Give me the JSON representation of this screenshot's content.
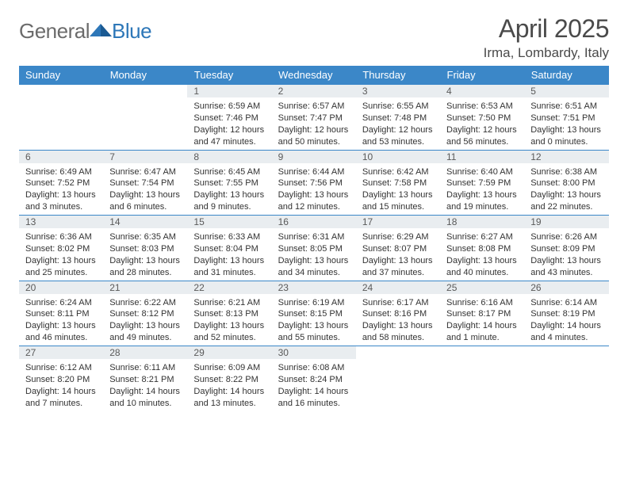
{
  "logo": {
    "general": "General",
    "blue": "Blue"
  },
  "title": "April 2025",
  "location": "Irma, Lombardy, Italy",
  "colors": {
    "header_bg": "#3b87c8",
    "header_text": "#ffffff",
    "daynum_bg": "#e9edf0",
    "border": "#3b87c8",
    "text": "#333333",
    "logo_general": "#6b6b6b",
    "logo_blue": "#2d77b8",
    "background": "#ffffff"
  },
  "typography": {
    "title_fontsize": 32,
    "location_fontsize": 17,
    "header_fontsize": 13,
    "daynum_fontsize": 12,
    "cell_fontsize": 11,
    "logo_fontsize": 26
  },
  "day_headers": [
    "Sunday",
    "Monday",
    "Tuesday",
    "Wednesday",
    "Thursday",
    "Friday",
    "Saturday"
  ],
  "weeks": [
    {
      "nums": [
        "",
        "",
        "1",
        "2",
        "3",
        "4",
        "5"
      ],
      "cells": [
        {
          "sunrise": "",
          "sunset": "",
          "daylight": ""
        },
        {
          "sunrise": "",
          "sunset": "",
          "daylight": ""
        },
        {
          "sunrise": "Sunrise: 6:59 AM",
          "sunset": "Sunset: 7:46 PM",
          "daylight": "Daylight: 12 hours and 47 minutes."
        },
        {
          "sunrise": "Sunrise: 6:57 AM",
          "sunset": "Sunset: 7:47 PM",
          "daylight": "Daylight: 12 hours and 50 minutes."
        },
        {
          "sunrise": "Sunrise: 6:55 AM",
          "sunset": "Sunset: 7:48 PM",
          "daylight": "Daylight: 12 hours and 53 minutes."
        },
        {
          "sunrise": "Sunrise: 6:53 AM",
          "sunset": "Sunset: 7:50 PM",
          "daylight": "Daylight: 12 hours and 56 minutes."
        },
        {
          "sunrise": "Sunrise: 6:51 AM",
          "sunset": "Sunset: 7:51 PM",
          "daylight": "Daylight: 13 hours and 0 minutes."
        }
      ]
    },
    {
      "nums": [
        "6",
        "7",
        "8",
        "9",
        "10",
        "11",
        "12"
      ],
      "cells": [
        {
          "sunrise": "Sunrise: 6:49 AM",
          "sunset": "Sunset: 7:52 PM",
          "daylight": "Daylight: 13 hours and 3 minutes."
        },
        {
          "sunrise": "Sunrise: 6:47 AM",
          "sunset": "Sunset: 7:54 PM",
          "daylight": "Daylight: 13 hours and 6 minutes."
        },
        {
          "sunrise": "Sunrise: 6:45 AM",
          "sunset": "Sunset: 7:55 PM",
          "daylight": "Daylight: 13 hours and 9 minutes."
        },
        {
          "sunrise": "Sunrise: 6:44 AM",
          "sunset": "Sunset: 7:56 PM",
          "daylight": "Daylight: 13 hours and 12 minutes."
        },
        {
          "sunrise": "Sunrise: 6:42 AM",
          "sunset": "Sunset: 7:58 PM",
          "daylight": "Daylight: 13 hours and 15 minutes."
        },
        {
          "sunrise": "Sunrise: 6:40 AM",
          "sunset": "Sunset: 7:59 PM",
          "daylight": "Daylight: 13 hours and 19 minutes."
        },
        {
          "sunrise": "Sunrise: 6:38 AM",
          "sunset": "Sunset: 8:00 PM",
          "daylight": "Daylight: 13 hours and 22 minutes."
        }
      ]
    },
    {
      "nums": [
        "13",
        "14",
        "15",
        "16",
        "17",
        "18",
        "19"
      ],
      "cells": [
        {
          "sunrise": "Sunrise: 6:36 AM",
          "sunset": "Sunset: 8:02 PM",
          "daylight": "Daylight: 13 hours and 25 minutes."
        },
        {
          "sunrise": "Sunrise: 6:35 AM",
          "sunset": "Sunset: 8:03 PM",
          "daylight": "Daylight: 13 hours and 28 minutes."
        },
        {
          "sunrise": "Sunrise: 6:33 AM",
          "sunset": "Sunset: 8:04 PM",
          "daylight": "Daylight: 13 hours and 31 minutes."
        },
        {
          "sunrise": "Sunrise: 6:31 AM",
          "sunset": "Sunset: 8:05 PM",
          "daylight": "Daylight: 13 hours and 34 minutes."
        },
        {
          "sunrise": "Sunrise: 6:29 AM",
          "sunset": "Sunset: 8:07 PM",
          "daylight": "Daylight: 13 hours and 37 minutes."
        },
        {
          "sunrise": "Sunrise: 6:27 AM",
          "sunset": "Sunset: 8:08 PM",
          "daylight": "Daylight: 13 hours and 40 minutes."
        },
        {
          "sunrise": "Sunrise: 6:26 AM",
          "sunset": "Sunset: 8:09 PM",
          "daylight": "Daylight: 13 hours and 43 minutes."
        }
      ]
    },
    {
      "nums": [
        "20",
        "21",
        "22",
        "23",
        "24",
        "25",
        "26"
      ],
      "cells": [
        {
          "sunrise": "Sunrise: 6:24 AM",
          "sunset": "Sunset: 8:11 PM",
          "daylight": "Daylight: 13 hours and 46 minutes."
        },
        {
          "sunrise": "Sunrise: 6:22 AM",
          "sunset": "Sunset: 8:12 PM",
          "daylight": "Daylight: 13 hours and 49 minutes."
        },
        {
          "sunrise": "Sunrise: 6:21 AM",
          "sunset": "Sunset: 8:13 PM",
          "daylight": "Daylight: 13 hours and 52 minutes."
        },
        {
          "sunrise": "Sunrise: 6:19 AM",
          "sunset": "Sunset: 8:15 PM",
          "daylight": "Daylight: 13 hours and 55 minutes."
        },
        {
          "sunrise": "Sunrise: 6:17 AM",
          "sunset": "Sunset: 8:16 PM",
          "daylight": "Daylight: 13 hours and 58 minutes."
        },
        {
          "sunrise": "Sunrise: 6:16 AM",
          "sunset": "Sunset: 8:17 PM",
          "daylight": "Daylight: 14 hours and 1 minute."
        },
        {
          "sunrise": "Sunrise: 6:14 AM",
          "sunset": "Sunset: 8:19 PM",
          "daylight": "Daylight: 14 hours and 4 minutes."
        }
      ]
    },
    {
      "nums": [
        "27",
        "28",
        "29",
        "30",
        "",
        "",
        ""
      ],
      "cells": [
        {
          "sunrise": "Sunrise: 6:12 AM",
          "sunset": "Sunset: 8:20 PM",
          "daylight": "Daylight: 14 hours and 7 minutes."
        },
        {
          "sunrise": "Sunrise: 6:11 AM",
          "sunset": "Sunset: 8:21 PM",
          "daylight": "Daylight: 14 hours and 10 minutes."
        },
        {
          "sunrise": "Sunrise: 6:09 AM",
          "sunset": "Sunset: 8:22 PM",
          "daylight": "Daylight: 14 hours and 13 minutes."
        },
        {
          "sunrise": "Sunrise: 6:08 AM",
          "sunset": "Sunset: 8:24 PM",
          "daylight": "Daylight: 14 hours and 16 minutes."
        },
        {
          "sunrise": "",
          "sunset": "",
          "daylight": ""
        },
        {
          "sunrise": "",
          "sunset": "",
          "daylight": ""
        },
        {
          "sunrise": "",
          "sunset": "",
          "daylight": ""
        }
      ]
    }
  ]
}
